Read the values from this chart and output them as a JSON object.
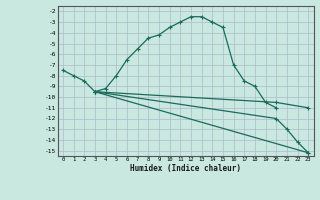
{
  "xlabel": "Humidex (Indice chaleur)",
  "bg_color": "#c8e8e0",
  "grid_color": "#b0b8cc",
  "line_color": "#1a6b5a",
  "xlim": [
    -0.5,
    23.5
  ],
  "ylim": [
    -15.5,
    -1.5
  ],
  "yticks": [
    -15,
    -14,
    -13,
    -12,
    -11,
    -10,
    -9,
    -8,
    -7,
    -6,
    -5,
    -4,
    -3,
    -2
  ],
  "xticks": [
    0,
    1,
    2,
    3,
    4,
    5,
    6,
    7,
    8,
    9,
    10,
    11,
    12,
    13,
    14,
    15,
    16,
    17,
    18,
    19,
    20,
    21,
    22,
    23
  ],
  "lines": [
    {
      "x": [
        0,
        1,
        2,
        3,
        4,
        5,
        6,
        7,
        8,
        9,
        10,
        11,
        12,
        13,
        14,
        15,
        16,
        17,
        18,
        19,
        20
      ],
      "y": [
        -7.5,
        -8.0,
        -8.5,
        -9.5,
        -9.2,
        -8.0,
        -6.5,
        -5.5,
        -4.5,
        -4.2,
        -3.5,
        -3.0,
        -2.5,
        -2.5,
        -3.0,
        -3.5,
        -7.0,
        -8.5,
        -9.0,
        -10.5,
        -11.0
      ]
    },
    {
      "x": [
        3,
        23
      ],
      "y": [
        -9.5,
        -15.2
      ]
    },
    {
      "x": [
        3,
        20,
        23
      ],
      "y": [
        -9.5,
        -10.5,
        -11.0
      ]
    },
    {
      "x": [
        3,
        20,
        21,
        22,
        23
      ],
      "y": [
        -9.5,
        -12.0,
        -13.0,
        -14.2,
        -15.2
      ]
    }
  ]
}
